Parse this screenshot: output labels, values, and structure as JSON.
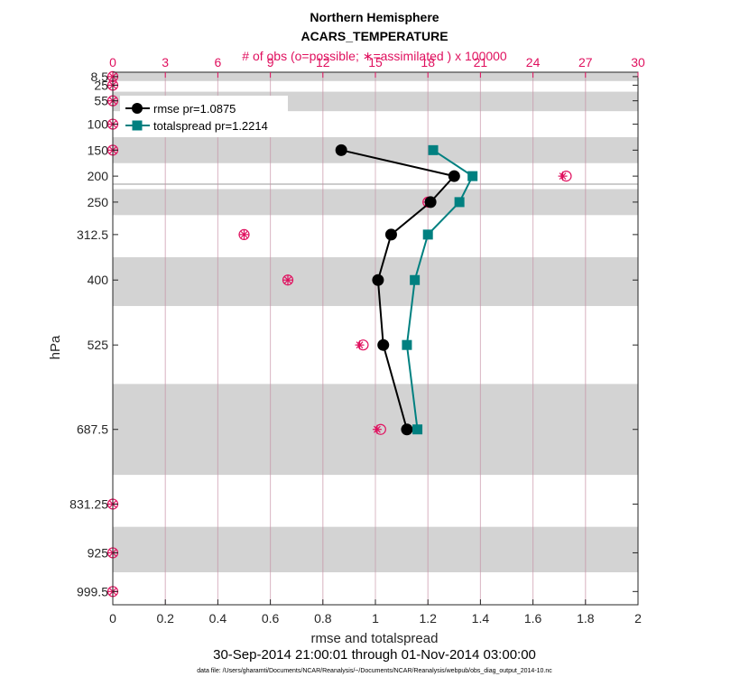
{
  "chart_data": {
    "type": "line",
    "title": "Northern Hemisphere",
    "subtitle": "ACARS_TEMPERATURE",
    "top_axis_label": "# of obs (o=possible; ∗=assimilated ) x 100000",
    "xlabel": "rmse and totalspread",
    "ylabel": "hPa",
    "date_range": "30-Sep-2014 21:00:01 through 01-Nov-2014 03:00:00",
    "footnote": "data file: /Users/gharamti/Documents/NCAR/Reanalysis/~/Documents/NCAR/Reanalysis/webpub/obs_diag_output_2014-10.nc",
    "xlim": [
      0,
      2
    ],
    "x_ticks": [
      "0",
      "0.2",
      "0.4",
      "0.6",
      "0.8",
      "1",
      "1.2",
      "1.4",
      "1.6",
      "1.8",
      "2"
    ],
    "top_xlim": [
      0,
      30
    ],
    "top_ticks": [
      "0",
      "3",
      "6",
      "9",
      "12",
      "15",
      "18",
      "21",
      "24",
      "27",
      "30"
    ],
    "ylim": [
      1025,
      0
    ],
    "levels": [
      8.5,
      25,
      55,
      100,
      150,
      200,
      250,
      312.5,
      400,
      525,
      687.5,
      831.25,
      925,
      999.5
    ],
    "level_labels": [
      "8.5",
      "25",
      "55",
      "100",
      "150",
      "200",
      "250",
      "312.5",
      "400",
      "525",
      "687.5",
      "831.25",
      "925",
      "999.5"
    ],
    "shaded_bands": [
      [
        0,
        17
      ],
      [
        37.5,
        75
      ],
      [
        125,
        175
      ],
      [
        225,
        275
      ],
      [
        356,
        450
      ],
      [
        600,
        775
      ],
      [
        875,
        962.5
      ]
    ],
    "series": [
      {
        "name": "rmse",
        "legend": "rmse pr=1.0875",
        "color": "#000000",
        "marker": "circle",
        "levels": [
          150,
          200,
          250,
          312.5,
          400,
          525,
          687.5
        ],
        "values": [
          0.87,
          1.3,
          1.21,
          1.06,
          1.01,
          1.03,
          1.12
        ]
      },
      {
        "name": "totalspread",
        "legend": "totalspread pr=1.2214",
        "color": "#008080",
        "marker": "square",
        "levels": [
          150,
          200,
          250,
          312.5,
          400,
          525,
          687.5
        ],
        "values": [
          1.22,
          1.37,
          1.32,
          1.2,
          1.15,
          1.12,
          1.16
        ]
      }
    ],
    "obs_counts": {
      "color": "#e0115f",
      "levels": [
        8.5,
        25,
        55,
        100,
        150,
        200,
        250,
        312.5,
        400,
        525,
        687.5,
        831.25,
        925,
        999.5
      ],
      "possible": [
        0,
        0,
        0,
        0,
        0,
        25.9,
        18.0,
        7.5,
        10.0,
        14.3,
        15.3,
        0,
        0,
        0
      ],
      "assimilated": [
        0,
        0,
        0,
        0,
        0,
        25.7,
        18.0,
        7.5,
        10.0,
        14.1,
        15.1,
        0,
        0,
        0
      ]
    }
  }
}
